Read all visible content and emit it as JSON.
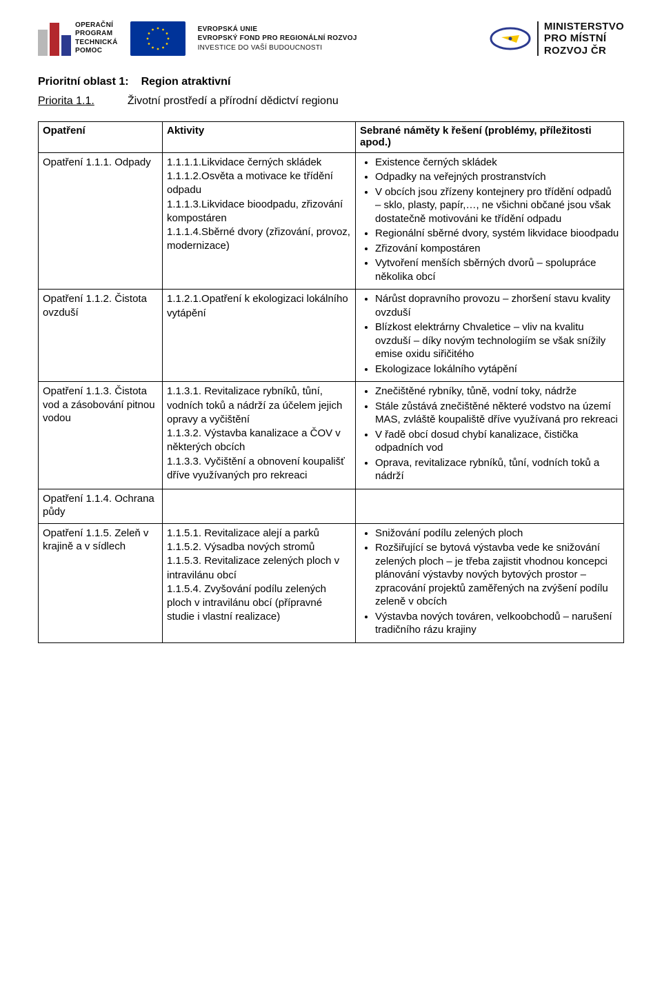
{
  "logos": {
    "optp_lines": [
      "OPERAČNÍ",
      "PROGRAM",
      "TECHNICKÁ",
      "POMOC"
    ],
    "eu_line1": "EVROPSKÁ UNIE",
    "eu_line2": "EVROPSKÝ FOND PRO REGIONÁLNÍ ROZVOJ",
    "eu_line3": "INVESTICE DO VAŠÍ BUDOUCNOSTI",
    "mmr_line1": "MINISTERSTVO",
    "mmr_line2": "PRO MÍSTNÍ",
    "mmr_line3": "ROZVOJ ČR"
  },
  "heading": {
    "priority_area_label": "Prioritní oblast 1:",
    "priority_area_title": "Region atraktivní",
    "priority_label": "Priorita 1.1.",
    "priority_title": "Životní prostředí a přírodní dědictví regionu"
  },
  "table": {
    "headers": {
      "col1": "Opatření",
      "col2": "Aktivity",
      "col3": "Sebrané náměty k řešení (problémy, příležitosti apod.)"
    },
    "rows": [
      {
        "measure": "Opatření 1.1.1. Odpady",
        "activities": "1.1.1.1.Likvidace černých skládek\n1.1.1.2.Osvěta a motivace ke třídění odpadu\n1.1.1.3.Likvidace bioodpadu, zřizování kompostáren\n1.1.1.4.Sběrné dvory (zřizování, provoz, modernizace)",
        "notes": [
          "Existence černých skládek",
          "Odpadky na veřejných prostranstvích",
          "V obcích jsou zřízeny kontejnery pro třídění odpadů – sklo, plasty, papír,…, ne všichni občané jsou však dostatečně motivováni ke třídění odpadu",
          "Regionální sběrné dvory, systém likvidace bioodpadu",
          "Zřizování kompostáren",
          "Vytvoření menších sběrných dvorů – spolupráce několika obcí"
        ]
      },
      {
        "measure": "Opatření 1.1.2. Čistota ovzduší",
        "activities": "1.1.2.1.Opatření k ekologizaci lokálního vytápění",
        "notes": [
          "Nárůst dopravního provozu – zhoršení stavu kvality ovzduší",
          "Blízkost elektrárny Chvaletice – vliv na kvalitu ovzduší – díky novým technologiím se však snížily emise oxidu siřičitého",
          "Ekologizace lokálního vytápění"
        ]
      },
      {
        "measure": "Opatření 1.1.3. Čistota vod  a zásobování pitnou vodou",
        "activities": "1.1.3.1. Revitalizace rybníků, tůní, vodních toků a nádrží za účelem jejich opravy a vyčištění\n1.1.3.2. Výstavba kanalizace a ČOV v některých obcích\n1.1.3.3. Vyčištění a obnovení koupališť dříve využívaných pro rekreaci",
        "notes": [
          "Znečištěné rybníky, tůně, vodní toky, nádrže",
          "Stále zůstává znečištěné některé vodstvo na území MAS, zvláště koupaliště dříve využívaná pro rekreaci",
          "V řadě obcí dosud chybí kanalizace, čistička odpadních vod",
          "Oprava, revitalizace rybníků, tůní, vodních toků a nádrží"
        ]
      },
      {
        "measure": "Opatření 1.1.4. Ochrana půdy",
        "activities": "",
        "notes": []
      },
      {
        "measure": "Opatření 1.1.5. Zeleň v krajině a v sídlech",
        "activities": "1.1.5.1. Revitalizace alejí a parků\n1.1.5.2. Výsadba nových stromů\n1.1.5.3. Revitalizace zelených ploch v intravilánu obcí\n1.1.5.4. Zvyšování podílu zelených ploch v intravilánu obcí (přípravné studie i vlastní realizace)",
        "notes": [
          "Snižování podílu zelených ploch",
          "Rozšiřující se bytová výstavba vede ke snižování zelených ploch – je třeba zajistit vhodnou koncepci plánování výstavby nových bytových prostor – zpracování projektů zaměřených na zvýšení podílu zeleně v obcích",
          "Výstavba nových továren, velkoobchodů – narušení tradičního rázu krajiny"
        ]
      }
    ]
  }
}
